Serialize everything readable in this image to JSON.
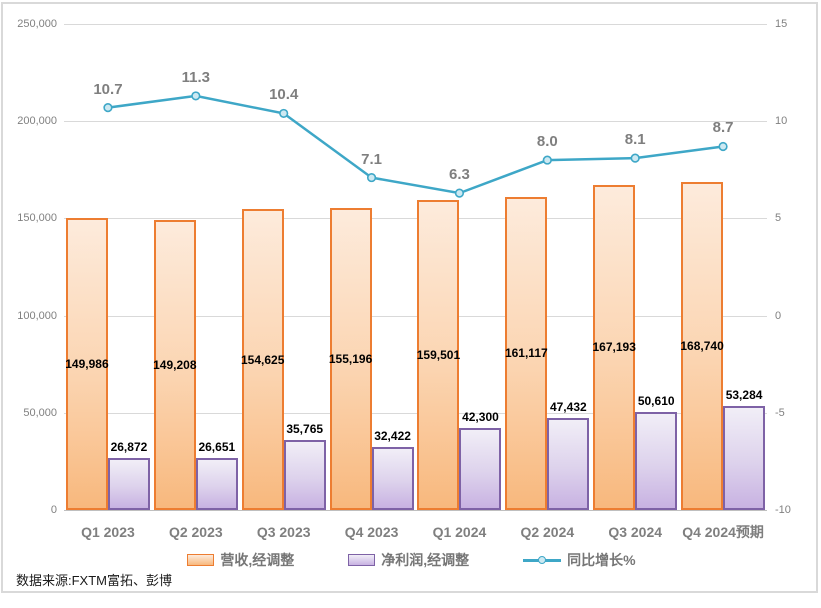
{
  "chart_data": {
    "type": "combo",
    "title": "",
    "categories": [
      "Q1 2023",
      "Q2 2023",
      "Q3 2023",
      "Q4 2023",
      "Q1 2024",
      "Q2 2024",
      "Q3 2024",
      "Q4 2024预期"
    ],
    "series": [
      {
        "name": "营收,经调整",
        "type": "bar",
        "axis": "left",
        "values": [
          149986,
          149208,
          154625,
          155196,
          159501,
          161117,
          167193,
          168740
        ],
        "labels": [
          "149,986",
          "149,208",
          "154,625",
          "155,196",
          "159,501",
          "161,117",
          "167,193",
          "168,740"
        ]
      },
      {
        "name": "净利润,经调整",
        "type": "bar",
        "axis": "left",
        "values": [
          26872,
          26651,
          35765,
          32422,
          42300,
          47432,
          50610,
          53284
        ],
        "labels": [
          "26,872",
          "26,651",
          "35,765",
          "32,422",
          "42,300",
          "47,432",
          "50,610",
          "53,284"
        ]
      },
      {
        "name": "同比增长%",
        "type": "line",
        "axis": "right",
        "values": [
          10.7,
          11.3,
          10.4,
          7.1,
          6.3,
          8.0,
          8.1,
          8.7
        ],
        "labels": [
          "10.7",
          "11.3",
          "10.4",
          "7.1",
          "6.3",
          "8.0",
          "8.1",
          "8.7"
        ]
      }
    ],
    "left_axis": {
      "min": 0,
      "max": 250000,
      "step": 50000,
      "tick_labels": [
        "0",
        "50,000",
        "100,000",
        "150,000",
        "200,000",
        "250,000"
      ]
    },
    "right_axis": {
      "min": -10,
      "max": 15,
      "step": 5,
      "tick_labels": [
        "-10",
        "-5",
        "0",
        "5",
        "10",
        "15"
      ]
    },
    "grid": true,
    "legend_position": "bottom"
  },
  "source_note": "数据来源:FXTM富拓、彭博",
  "colors": {
    "revenue_border": "#ed7d31",
    "revenue_fill_top": "#fdebdc",
    "revenue_fill_bottom": "#f8b87d",
    "profit_border": "#7e62a6",
    "profit_fill_top": "#f1eef7",
    "profit_fill_bottom": "#c8b2e2",
    "growth_line": "#3ea7c7",
    "growth_marker_fill": "#cde9f2",
    "grid_line": "#d9d9d9",
    "axis_text": "#808080",
    "bar_label_text": "#000000",
    "line_label_text": "#7f7f7f",
    "frame_border": "#d9d9d9"
  }
}
